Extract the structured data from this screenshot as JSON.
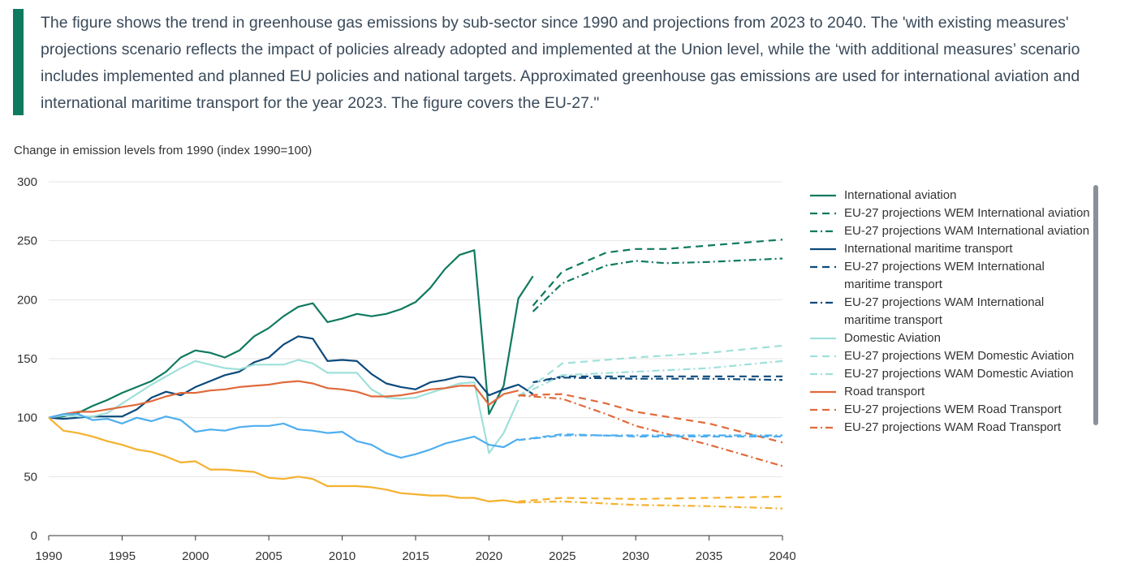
{
  "caption": "The figure shows the trend in greenhouse gas emissions by sub-sector since 1990 and projections from 2023 to 2040. The 'with existing measures' projections scenario reflects the impact of policies already adopted and implemented at the Union level, while the ‘with additional measures’ scenario includes implemented and planned EU policies and national targets. Approximated greenhouse gas emissions are used for international aviation and international maritime transport for the year 2023. The figure covers the EU-27.\"",
  "colors": {
    "accent": "#0e7a5f"
  },
  "chart_data": {
    "type": "line",
    "ylabel": "Change in emission levels from 1990 (index 1990=100)",
    "xlim": [
      1990,
      2040
    ],
    "ylim": [
      0,
      300
    ],
    "x_ticks": [
      "1990",
      "1995",
      "2000",
      "2005",
      "2010",
      "2015",
      "2020",
      "2025",
      "2030",
      "2035",
      "2040"
    ],
    "y_ticks": [
      "0",
      "50",
      "100",
      "150",
      "200",
      "250",
      "300"
    ],
    "grid": true,
    "legend_position": "right",
    "series": [
      {
        "name": "International aviation",
        "color": "#0e7a5f",
        "dash": "solid",
        "x": [
          1990,
          1991,
          1992,
          1993,
          1994,
          1995,
          1996,
          1997,
          1998,
          1999,
          2000,
          2001,
          2002,
          2003,
          2004,
          2005,
          2006,
          2007,
          2008,
          2009,
          2010,
          2011,
          2012,
          2013,
          2014,
          2015,
          2016,
          2017,
          2018,
          2019,
          2020,
          2021,
          2022,
          2023
        ],
        "y": [
          100,
          101,
          104,
          110,
          115,
          121,
          126,
          131,
          139,
          151,
          157,
          155,
          151,
          157,
          169,
          176,
          186,
          194,
          197,
          181,
          184,
          188,
          186,
          188,
          192,
          198,
          210,
          226,
          238,
          242,
          103,
          127,
          201,
          220
        ]
      },
      {
        "name": "EU-27 projections WEM International aviation",
        "color": "#0e7a5f",
        "dash": "dash",
        "x": [
          2023,
          2025,
          2028,
          2030,
          2032,
          2035,
          2040
        ],
        "y": [
          195,
          224,
          240,
          243,
          243,
          246,
          251
        ]
      },
      {
        "name": "EU-27 projections WAM International aviation",
        "color": "#0e7a5f",
        "dash": "dashdot",
        "x": [
          2023,
          2025,
          2028,
          2030,
          2032,
          2035,
          2040
        ],
        "y": [
          190,
          214,
          229,
          233,
          231,
          232,
          235
        ]
      },
      {
        "name": "International maritime transport",
        "color": "#0d4a7c",
        "dash": "solid",
        "x": [
          1990,
          1991,
          1992,
          1993,
          1994,
          1995,
          1996,
          1997,
          1998,
          1999,
          2000,
          2001,
          2002,
          2003,
          2004,
          2005,
          2006,
          2007,
          2008,
          2009,
          2010,
          2011,
          2012,
          2013,
          2014,
          2015,
          2016,
          2017,
          2018,
          2019,
          2020,
          2021,
          2022,
          2023
        ],
        "y": [
          100,
          99,
          100,
          101,
          101,
          101,
          107,
          117,
          122,
          119,
          126,
          131,
          136,
          139,
          147,
          151,
          162,
          169,
          167,
          148,
          149,
          148,
          137,
          129,
          126,
          124,
          130,
          132,
          135,
          134,
          119,
          124,
          128,
          120
        ]
      },
      {
        "name": "EU-27 projections WEM International maritime transport",
        "color": "#0d4a7c",
        "dash": "dash",
        "x": [
          2023,
          2025,
          2030,
          2035,
          2040
        ],
        "y": [
          130,
          135,
          135,
          135,
          135
        ]
      },
      {
        "name": "EU-27 projections WAM International maritime transport",
        "color": "#0d4a7c",
        "dash": "dashdot",
        "x": [
          2023,
          2025,
          2030,
          2035,
          2040
        ],
        "y": [
          130,
          134,
          133,
          133,
          132
        ]
      },
      {
        "name": "Domestic Aviation",
        "color": "#9fe0da",
        "dash": "solid",
        "x": [
          1990,
          1991,
          1992,
          1993,
          1994,
          1995,
          1996,
          1997,
          1998,
          1999,
          2000,
          2001,
          2002,
          2003,
          2004,
          2005,
          2006,
          2007,
          2008,
          2009,
          2010,
          2011,
          2012,
          2013,
          2014,
          2015,
          2016,
          2017,
          2018,
          2019,
          2020,
          2021,
          2022
        ],
        "y": [
          100,
          102,
          101,
          101,
          104,
          112,
          120,
          128,
          135,
          142,
          148,
          145,
          142,
          141,
          145,
          145,
          145,
          149,
          146,
          138,
          138,
          138,
          124,
          117,
          116,
          117,
          121,
          125,
          129,
          130,
          70,
          87,
          115
        ]
      },
      {
        "name": "EU-27 projections WEM Domestic Aviation",
        "color": "#9fe0da",
        "dash": "dash",
        "x": [
          2022,
          2025,
          2030,
          2035,
          2040
        ],
        "y": [
          118,
          146,
          151,
          155,
          161
        ]
      },
      {
        "name": "EU-27 projections WAM Domestic Aviation",
        "color": "#9fe0da",
        "dash": "dashdot",
        "x": [
          2022,
          2025,
          2030,
          2035,
          2040
        ],
        "y": [
          118,
          136,
          139,
          142,
          148
        ]
      },
      {
        "name": "Road transport",
        "color": "#e06a3c",
        "dash": "solid",
        "x": [
          1990,
          1991,
          1992,
          1993,
          1994,
          1995,
          1996,
          1997,
          1998,
          1999,
          2000,
          2001,
          2002,
          2003,
          2004,
          2005,
          2006,
          2007,
          2008,
          2009,
          2010,
          2011,
          2012,
          2013,
          2014,
          2015,
          2016,
          2017,
          2018,
          2019,
          2020,
          2021,
          2022
        ],
        "y": [
          100,
          103,
          105,
          105,
          107,
          109,
          111,
          114,
          118,
          121,
          121,
          123,
          124,
          126,
          127,
          128,
          130,
          131,
          129,
          125,
          124,
          122,
          118,
          118,
          119,
          121,
          124,
          125,
          127,
          127,
          111,
          120,
          123
        ]
      },
      {
        "name": "EU-27 projections WEM Road Transport",
        "color": "#e06a3c",
        "dash": "dash",
        "x": [
          2022,
          2025,
          2028,
          2030,
          2035,
          2040
        ],
        "y": [
          119,
          120,
          112,
          105,
          95,
          79
        ]
      },
      {
        "name": "EU-27 projections WAM Road Transport",
        "color": "#e06a3c",
        "dash": "dashdot",
        "x": [
          2022,
          2025,
          2028,
          2030,
          2035,
          2040
        ],
        "y": [
          119,
          116,
          103,
          93,
          77,
          59
        ]
      },
      {
        "name": "",
        "color": "#4eaef0",
        "dash": "solid",
        "x": [
          1990,
          1991,
          1992,
          1993,
          1994,
          1995,
          1996,
          1997,
          1998,
          1999,
          2000,
          2001,
          2002,
          2003,
          2004,
          2005,
          2006,
          2007,
          2008,
          2009,
          2010,
          2011,
          2012,
          2013,
          2014,
          2015,
          2016,
          2017,
          2018,
          2019,
          2020,
          2021,
          2022
        ],
        "y": [
          100,
          103,
          103,
          98,
          99,
          95,
          100,
          97,
          101,
          98,
          88,
          90,
          89,
          92,
          93,
          93,
          95,
          90,
          89,
          87,
          88,
          80,
          77,
          70,
          66,
          69,
          73,
          78,
          81,
          84,
          77,
          75,
          82
        ]
      },
      {
        "name": "",
        "color": "#4eaef0",
        "dash": "dash",
        "x": [
          2022,
          2025,
          2030,
          2035,
          2040
        ],
        "y": [
          81,
          86,
          84,
          84,
          84
        ]
      },
      {
        "name": "",
        "color": "#4eaef0",
        "dash": "dashdot",
        "x": [
          2022,
          2025,
          2030,
          2035,
          2040
        ],
        "y": [
          81,
          85,
          85,
          85,
          85
        ]
      },
      {
        "name": "",
        "color": "#f5b12e",
        "dash": "solid",
        "x": [
          1990,
          1991,
          1992,
          1993,
          1994,
          1995,
          1996,
          1997,
          1998,
          1999,
          2000,
          2001,
          2002,
          2003,
          2004,
          2005,
          2006,
          2007,
          2008,
          2009,
          2010,
          2011,
          2012,
          2013,
          2014,
          2015,
          2016,
          2017,
          2018,
          2019,
          2020,
          2021,
          2022
        ],
        "y": [
          100,
          89,
          87,
          84,
          80,
          77,
          73,
          71,
          67,
          62,
          63,
          56,
          56,
          55,
          54,
          49,
          48,
          50,
          48,
          42,
          42,
          42,
          41,
          39,
          36,
          35,
          34,
          34,
          32,
          32,
          29,
          30,
          28
        ]
      },
      {
        "name": "",
        "color": "#f5b12e",
        "dash": "dash",
        "x": [
          2022,
          2025,
          2030,
          2035,
          2040
        ],
        "y": [
          29,
          32,
          31,
          32,
          33
        ]
      },
      {
        "name": "",
        "color": "#f5b12e",
        "dash": "dashdot",
        "x": [
          2022,
          2025,
          2030,
          2035,
          2040
        ],
        "y": [
          28,
          29,
          26,
          25,
          23
        ]
      }
    ]
  },
  "legend": [
    {
      "label": "International aviation",
      "color": "#0e7a5f",
      "dash": "solid"
    },
    {
      "label": "EU-27 projections WEM International aviation",
      "color": "#0e7a5f",
      "dash": "dash"
    },
    {
      "label": "EU-27 projections WAM International aviation",
      "color": "#0e7a5f",
      "dash": "dashdot"
    },
    {
      "label": "International maritime transport",
      "color": "#0d4a7c",
      "dash": "solid"
    },
    {
      "label": "EU-27 projections WEM International maritime transport",
      "color": "#0d4a7c",
      "dash": "dash"
    },
    {
      "label": "EU-27 projections WAM International maritime transport",
      "color": "#0d4a7c",
      "dash": "dashdot"
    },
    {
      "label": "Domestic Aviation",
      "color": "#9fe0da",
      "dash": "solid"
    },
    {
      "label": "EU-27 projections WEM Domestic Aviation",
      "color": "#9fe0da",
      "dash": "dash"
    },
    {
      "label": "EU-27 projections WAM Domestic Aviation",
      "color": "#9fe0da",
      "dash": "dashdot"
    },
    {
      "label": "Road transport",
      "color": "#e06a3c",
      "dash": "solid"
    },
    {
      "label": "EU-27 projections WEM Road Transport",
      "color": "#e06a3c",
      "dash": "dash"
    },
    {
      "label": "EU-27 projections WAM Road Transport",
      "color": "#e06a3c",
      "dash": "dashdot"
    }
  ]
}
